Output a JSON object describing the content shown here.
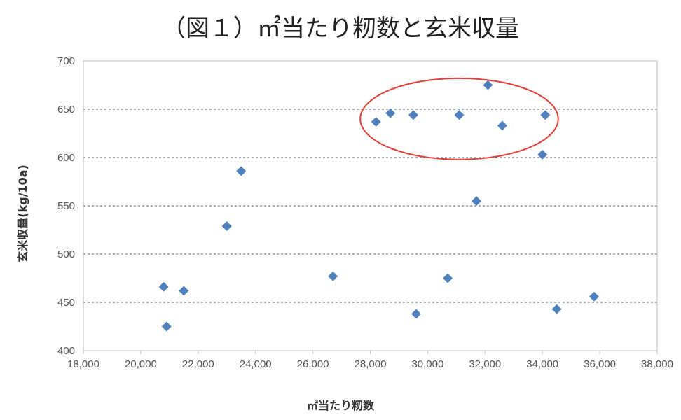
{
  "chart_data": {
    "type": "scatter",
    "title": "（図１）㎡当たり籾数と玄米収量",
    "xlabel": "㎡当たり籾数",
    "ylabel": "玄米収量(kg/10a)",
    "xlim": [
      18000,
      38000
    ],
    "ylim": [
      400,
      700
    ],
    "xticks": [
      18000,
      20000,
      22000,
      24000,
      26000,
      28000,
      30000,
      32000,
      34000,
      36000,
      38000
    ],
    "xtick_labels": [
      "18,000",
      "20,000",
      "22,000",
      "24,000",
      "26,000",
      "28,000",
      "30,000",
      "32,000",
      "34,000",
      "36,000",
      "38,000"
    ],
    "yticks": [
      400,
      450,
      500,
      550,
      600,
      650,
      700
    ],
    "ytick_labels": [
      "400",
      "450",
      "500",
      "550",
      "600",
      "650",
      "700"
    ],
    "grid": "horizontal-dashed",
    "legend": "none",
    "marker": "diamond",
    "marker_color": "#4f81bd",
    "highlight_color": "#e0403a",
    "series": [
      {
        "points": [
          {
            "x": 20800,
            "y": 466
          },
          {
            "x": 20900,
            "y": 425
          },
          {
            "x": 21500,
            "y": 462
          },
          {
            "x": 23000,
            "y": 529
          },
          {
            "x": 23500,
            "y": 586
          },
          {
            "x": 26700,
            "y": 477
          },
          {
            "x": 28200,
            "y": 637
          },
          {
            "x": 28700,
            "y": 646
          },
          {
            "x": 29500,
            "y": 644
          },
          {
            "x": 29600,
            "y": 438
          },
          {
            "x": 30700,
            "y": 475
          },
          {
            "x": 31100,
            "y": 644
          },
          {
            "x": 31700,
            "y": 555
          },
          {
            "x": 32100,
            "y": 675
          },
          {
            "x": 32600,
            "y": 633
          },
          {
            "x": 34000,
            "y": 603
          },
          {
            "x": 34100,
            "y": 644
          },
          {
            "x": 34500,
            "y": 443
          },
          {
            "x": 35800,
            "y": 456
          }
        ]
      }
    ],
    "highlight_region": {
      "x_center": 31100,
      "y_center": 640,
      "x_radius": 3450,
      "y_radius": 42
    }
  }
}
